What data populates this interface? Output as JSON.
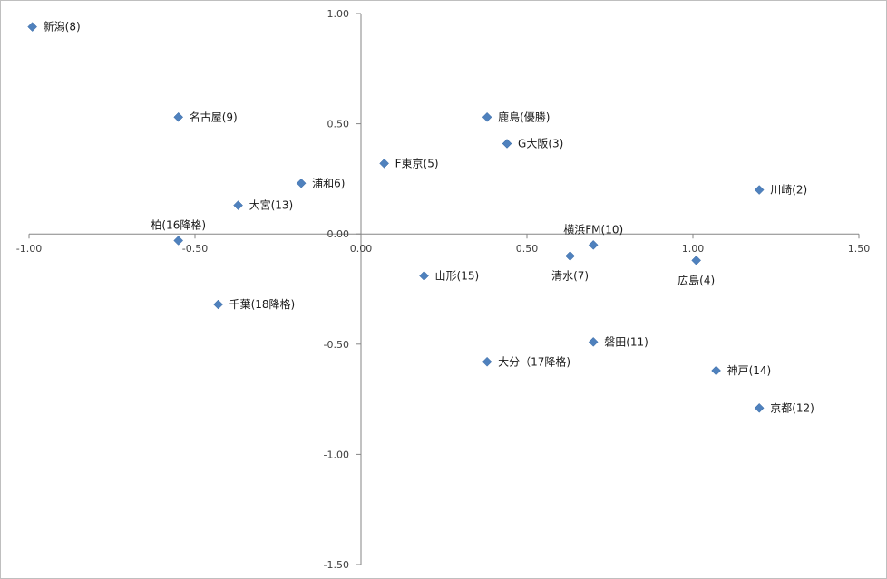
{
  "chart_data": {
    "type": "scatter",
    "xlim": [
      -1.0,
      1.5
    ],
    "ylim": [
      -1.5,
      1.0
    ],
    "x_ticks": [
      -1.0,
      -0.5,
      0.0,
      0.5,
      1.0,
      1.5
    ],
    "y_ticks": [
      1.0,
      0.5,
      0.0,
      -0.5,
      -1.0,
      -1.5
    ],
    "x_tick_labels": [
      "-1.00",
      "-0.50",
      "0.00",
      "0.50",
      "1.00",
      "1.50"
    ],
    "y_tick_labels": [
      "1.00",
      "0.50",
      "0.00",
      "-0.50",
      "-1.00",
      "-1.50"
    ],
    "grid": false,
    "legend": "none",
    "marker_color": "#4f81bd",
    "marker": "diamond",
    "points": [
      {
        "label": "新潟(8)",
        "x": -0.99,
        "y": 0.94,
        "label_pos": "right"
      },
      {
        "label": "名古屋(9)",
        "x": -0.55,
        "y": 0.53,
        "label_pos": "right"
      },
      {
        "label": "浦和6)",
        "x": -0.18,
        "y": 0.23,
        "label_pos": "right"
      },
      {
        "label": "大宮(13)",
        "x": -0.37,
        "y": 0.13,
        "label_pos": "right"
      },
      {
        "label": "柏(16降格)",
        "x": -0.55,
        "y": -0.03,
        "label_pos": "above"
      },
      {
        "label": "千葉(18降格)",
        "x": -0.43,
        "y": -0.32,
        "label_pos": "right"
      },
      {
        "label": "F東京(5)",
        "x": 0.07,
        "y": 0.32,
        "label_pos": "right"
      },
      {
        "label": "鹿島(優勝)",
        "x": 0.38,
        "y": 0.53,
        "label_pos": "right"
      },
      {
        "label": "G大阪(3)",
        "x": 0.44,
        "y": 0.41,
        "label_pos": "right"
      },
      {
        "label": "川崎(2)",
        "x": 1.2,
        "y": 0.2,
        "label_pos": "right"
      },
      {
        "label": "横浜FM(10)",
        "x": 0.7,
        "y": -0.05,
        "label_pos": "above"
      },
      {
        "label": "清水(7)",
        "x": 0.63,
        "y": -0.1,
        "label_pos": "below"
      },
      {
        "label": "広島(4)",
        "x": 1.01,
        "y": -0.12,
        "label_pos": "below"
      },
      {
        "label": "山形(15)",
        "x": 0.19,
        "y": -0.19,
        "label_pos": "right"
      },
      {
        "label": "磐田(11)",
        "x": 0.7,
        "y": -0.49,
        "label_pos": "right"
      },
      {
        "label": "大分（17降格)",
        "x": 0.38,
        "y": -0.58,
        "label_pos": "right"
      },
      {
        "label": "神戸(14)",
        "x": 1.07,
        "y": -0.62,
        "label_pos": "right"
      },
      {
        "label": "京都(12)",
        "x": 1.2,
        "y": -0.79,
        "label_pos": "right"
      }
    ]
  }
}
